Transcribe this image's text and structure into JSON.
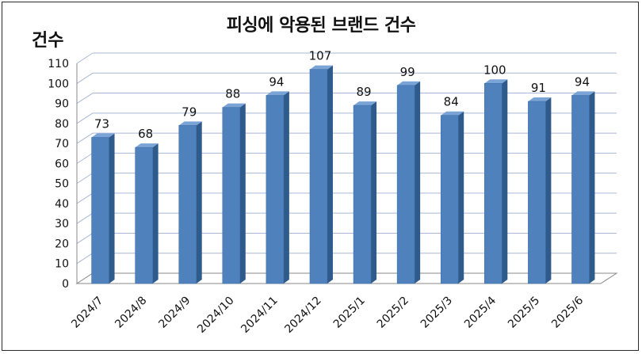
{
  "chart_data": {
    "type": "bar",
    "title": "피싱에 악용된 브랜드 건수",
    "ylabel": "건수",
    "xlabel": "",
    "ylim": [
      0,
      110
    ],
    "yticks": [
      0,
      10,
      20,
      30,
      40,
      50,
      60,
      70,
      80,
      90,
      100,
      110
    ],
    "grid": true,
    "bar_color": "#4f81bd",
    "categories": [
      "2024/7",
      "2024/8",
      "2024/9",
      "2024/10",
      "2024/11",
      "2024/12",
      "2025/1",
      "2025/2",
      "2025/3",
      "2025/4",
      "2025/5",
      "2025/6"
    ],
    "values": [
      73,
      68,
      79,
      88,
      94,
      107,
      89,
      99,
      84,
      100,
      91,
      94
    ]
  }
}
